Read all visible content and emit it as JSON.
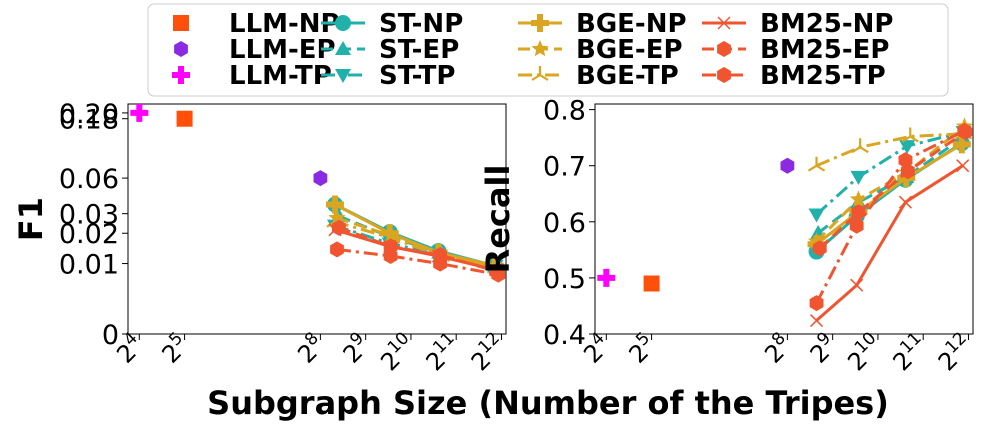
{
  "chart_data": {
    "type": "line",
    "xlabel": "Subgraph Size (Number of the Tripes)",
    "x_tick_labels": [
      {
        "base": "2",
        "exp": "4",
        "value": 16
      },
      {
        "base": "2",
        "exp": "5",
        "value": 32
      },
      {
        "base": "2",
        "exp": "8",
        "value": 256
      },
      {
        "base": "2",
        "exp": "9",
        "value": 512
      },
      {
        "base": "2",
        "exp": "10",
        "value": 1024
      },
      {
        "base": "2",
        "exp": "11",
        "value": 2048
      },
      {
        "base": "2",
        "exp": "12",
        "value": 4096
      }
    ],
    "series_styles": [
      {
        "name": "LLM-NP",
        "color": "#ff4f0a",
        "marker": "square",
        "dash": "none",
        "line": false
      },
      {
        "name": "LLM-EP",
        "color": "#8a2be2",
        "marker": "hexagon",
        "dash": "none",
        "line": false
      },
      {
        "name": "LLM-TP",
        "color": "#ff00ff",
        "marker": "plus",
        "dash": "none",
        "line": false
      },
      {
        "name": "ST-NP",
        "color": "#20b2aa",
        "marker": "circle",
        "dash": "solid",
        "line": true
      },
      {
        "name": "ST-EP",
        "color": "#20b2aa",
        "marker": "triangle-up",
        "dash": "dashed",
        "line": true
      },
      {
        "name": "ST-TP",
        "color": "#20b2aa",
        "marker": "triangle-down",
        "dash": "dashdot",
        "line": true
      },
      {
        "name": "BGE-NP",
        "color": "#daa520",
        "marker": "plus",
        "dash": "solid",
        "line": true
      },
      {
        "name": "BGE-EP",
        "color": "#daa520",
        "marker": "star",
        "dash": "dashed",
        "line": true
      },
      {
        "name": "BGE-TP",
        "color": "#daa520",
        "marker": "tri",
        "dash": "dashdot",
        "line": true
      },
      {
        "name": "BM25-NP",
        "color": "#f05530",
        "marker": "x",
        "dash": "solid",
        "line": true
      },
      {
        "name": "BM25-EP",
        "color": "#f05530",
        "marker": "hexagon",
        "dash": "dashed",
        "line": true
      },
      {
        "name": "BM25-TP",
        "color": "#f05530",
        "marker": "hexagon",
        "dash": "dashdot",
        "line": true
      }
    ],
    "charts": [
      {
        "ylabel": "F1",
        "y_scale": "symlog",
        "y_ticks": [
          0,
          0.01,
          0.02,
          0.03,
          0.06,
          0.18,
          0.2
        ],
        "y_tick_labels": [
          "0",
          "0.01",
          "0.02",
          "0.03",
          "0.06",
          "0.18",
          "0.20"
        ],
        "series": [
          {
            "name": "LLM-NP",
            "x": [
              32
            ],
            "y": [
              0.18
            ]
          },
          {
            "name": "LLM-EP",
            "x": [
              256
            ],
            "y": [
              0.06
            ]
          },
          {
            "name": "LLM-TP",
            "x": [
              16
            ],
            "y": [
              0.2
            ]
          },
          {
            "name": "ST-NP",
            "x": [
              320,
              740,
              1560,
              3650
            ],
            "y": [
              0.036,
              0.0205,
              0.0135,
              0.0095
            ]
          },
          {
            "name": "ST-EP",
            "x": [
              340,
              750,
              1580,
              3700
            ],
            "y": [
              0.0285,
              0.0185,
              0.013,
              0.0093
            ]
          },
          {
            "name": "ST-TP",
            "x": [
              320,
              740,
              1560,
              3750
            ],
            "y": [
              0.0235,
              0.016,
              0.0125,
              0.0095
            ]
          },
          {
            "name": "BGE-NP",
            "x": [
              320,
              740,
              1560,
              3700
            ],
            "y": [
              0.036,
              0.02,
              0.013,
              0.0095
            ]
          },
          {
            "name": "BGE-EP",
            "x": [
              330,
              750,
              1600,
              3750
            ],
            "y": [
              0.0275,
              0.019,
              0.013,
              0.0091
            ]
          },
          {
            "name": "BGE-TP",
            "x": [
              320,
              760,
              1640,
              3800
            ],
            "y": [
              0.0255,
              0.018,
              0.012,
              0.0089
            ]
          },
          {
            "name": "BM25-NP",
            "x": [
              320,
              740,
              1560,
              3750
            ],
            "y": [
              0.0215,
              0.015,
              0.012,
              0.0085
            ]
          },
          {
            "name": "BM25-EP",
            "x": [
              340,
              750,
              1600,
              3800
            ],
            "y": [
              0.0225,
              0.015,
              0.0123,
              0.0082
            ]
          },
          {
            "name": "BM25-TP",
            "x": [
              330,
              750,
              1600,
              3900
            ],
            "y": [
              0.014,
              0.012,
              0.01,
              0.0075
            ]
          }
        ]
      },
      {
        "ylabel": "Recall",
        "y_scale": "linear",
        "ylim": [
          0.4,
          0.8
        ],
        "y_ticks": [
          0.4,
          0.5,
          0.6,
          0.7,
          0.8
        ],
        "y_tick_labels": [
          "0.4",
          "0.5",
          "0.6",
          "0.7",
          "0.8"
        ],
        "series": [
          {
            "name": "LLM-NP",
            "x": [
              32
            ],
            "y": [
              0.49
            ]
          },
          {
            "name": "LLM-EP",
            "x": [
              256
            ],
            "y": [
              0.7
            ]
          },
          {
            "name": "LLM-TP",
            "x": [
              16
            ],
            "y": [
              0.5
            ]
          },
          {
            "name": "ST-NP",
            "x": [
              400,
              740,
              1560,
              3700
            ],
            "y": [
              0.547,
              0.61,
              0.675,
              0.74
            ]
          },
          {
            "name": "ST-EP",
            "x": [
              410,
              760,
              1580,
              3750
            ],
            "y": [
              0.58,
              0.635,
              0.68,
              0.75
            ]
          },
          {
            "name": "ST-TP",
            "x": [
              400,
              760,
              1600,
              3800
            ],
            "y": [
              0.613,
              0.68,
              0.735,
              0.76
            ]
          },
          {
            "name": "BGE-NP",
            "x": [
              400,
              760,
              1580,
              3700
            ],
            "y": [
              0.56,
              0.618,
              0.678,
              0.738
            ]
          },
          {
            "name": "BGE-EP",
            "x": [
              400,
              760,
              1600,
              3850
            ],
            "y": [
              0.565,
              0.64,
              0.688,
              0.77
            ]
          },
          {
            "name": "BGE-TP",
            "x": [
              400,
              780,
              1680,
              3800
            ],
            "y": [
              0.7,
              0.733,
              0.752,
              0.757
            ]
          },
          {
            "name": "BM25-NP",
            "x": [
              400,
              740,
              1560,
              3750
            ],
            "y": [
              0.424,
              0.487,
              0.635,
              0.7
            ]
          },
          {
            "name": "BM25-EP",
            "x": [
              420,
              760,
              1620,
              3900
            ],
            "y": [
              0.553,
              0.617,
              0.69,
              0.76
            ]
          },
          {
            "name": "BM25-TP",
            "x": [
              400,
              740,
              1560,
              3850
            ],
            "y": [
              0.455,
              0.593,
              0.71,
              0.762
            ]
          }
        ]
      }
    ]
  }
}
